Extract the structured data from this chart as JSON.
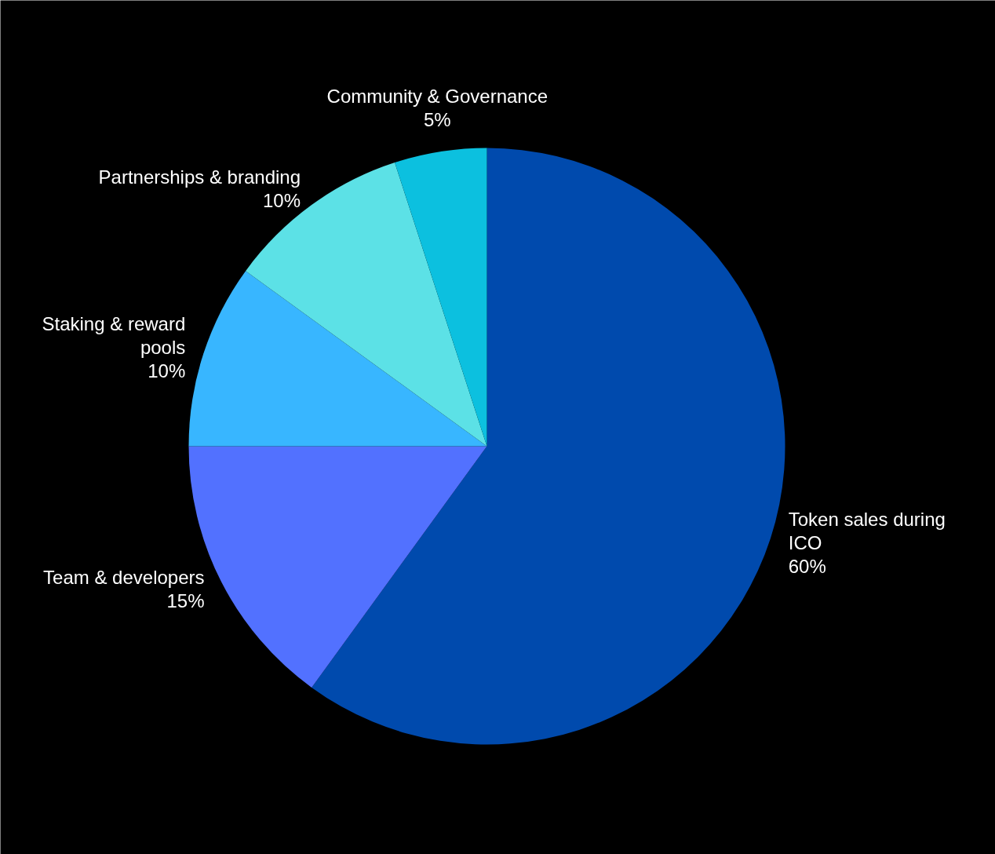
{
  "chart_data": {
    "type": "pie",
    "categories": [
      "Token sales during ICO",
      "Team & developers",
      "Staking & reward pools",
      "Partnerships & branding",
      "Community & Governance"
    ],
    "values": [
      60,
      15,
      10,
      10,
      5
    ],
    "value_labels": [
      "60%",
      "15%",
      "10%",
      "10%",
      "5%"
    ],
    "colors": [
      "#004aad",
      "#5271ff",
      "#38b6ff",
      "#5ce1e6",
      "#0cc0df"
    ]
  }
}
